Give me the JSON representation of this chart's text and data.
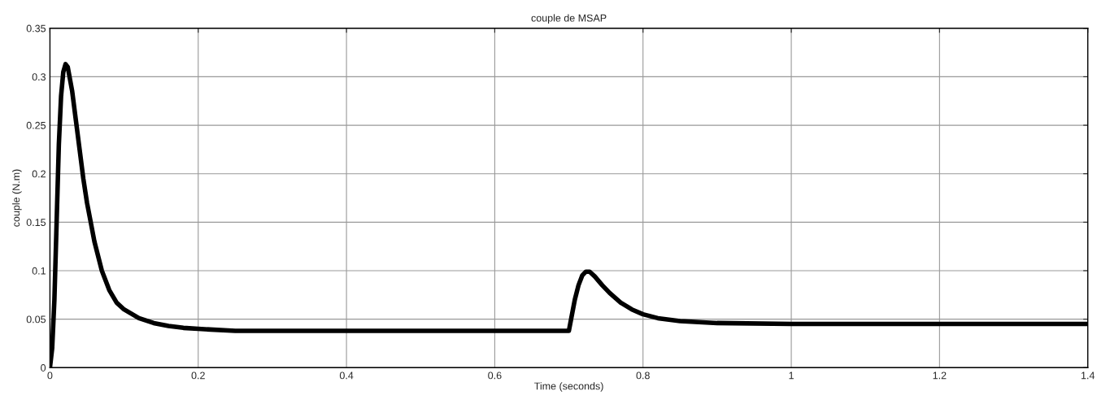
{
  "chart_data": {
    "type": "line",
    "title": "couple de MSAP",
    "xlabel": "Time (seconds)",
    "ylabel": "couple (N.m)",
    "xlim": [
      0,
      1.4
    ],
    "ylim": [
      0,
      0.35
    ],
    "xticks": [
      0,
      0.2,
      0.4,
      0.6,
      0.8,
      1,
      1.2,
      1.4
    ],
    "yticks": [
      0,
      0.05,
      0.1,
      0.15,
      0.2,
      0.25,
      0.3,
      0.35
    ],
    "grid": true,
    "marker": "none",
    "line_style": "solid",
    "series": [
      {
        "color": "#000000",
        "x": [
          0,
          0.003,
          0.006,
          0.009,
          0.012,
          0.015,
          0.018,
          0.021,
          0.024,
          0.03,
          0.035,
          0.04,
          0.045,
          0.05,
          0.055,
          0.06,
          0.07,
          0.08,
          0.09,
          0.1,
          0.12,
          0.14,
          0.16,
          0.18,
          0.2,
          0.25,
          0.3,
          0.5,
          0.7,
          0.703,
          0.708,
          0.713,
          0.718,
          0.723,
          0.728,
          0.735,
          0.745,
          0.755,
          0.77,
          0.785,
          0.8,
          0.82,
          0.85,
          0.9,
          1,
          1.2,
          1.4
        ],
        "values": [
          0,
          0.02,
          0.07,
          0.15,
          0.23,
          0.28,
          0.305,
          0.313,
          0.31,
          0.285,
          0.255,
          0.225,
          0.195,
          0.17,
          0.15,
          0.13,
          0.1,
          0.08,
          0.067,
          0.06,
          0.051,
          0.046,
          0.043,
          0.041,
          0.04,
          0.038,
          0.038,
          0.038,
          0.038,
          0.05,
          0.07,
          0.085,
          0.095,
          0.099,
          0.099,
          0.094,
          0.085,
          0.077,
          0.067,
          0.06,
          0.055,
          0.051,
          0.048,
          0.046,
          0.045,
          0.045,
          0.045
        ]
      }
    ]
  }
}
